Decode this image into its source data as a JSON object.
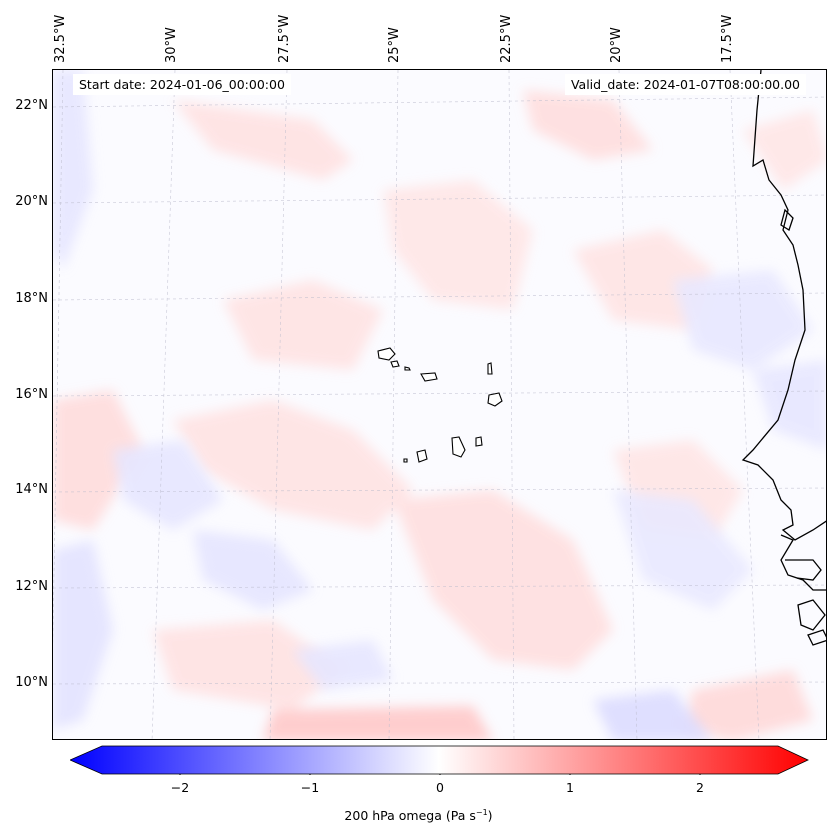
{
  "map": {
    "start_date": "Start date: 2024-01-06_00:00:00",
    "valid_date": "Valid_date: 2024-01-07T08:00:00.00",
    "lat_labels": [
      "22°N",
      "20°N",
      "18°N",
      "16°N",
      "14°N",
      "12°N",
      "10°N"
    ],
    "lon_labels": [
      "32.5°W",
      "30°W",
      "27.5°W",
      "25°W",
      "22.5°W",
      "20°W",
      "17.5°W"
    ],
    "field_colors": {
      "pos": "#ff0000",
      "neg": "#0000ff",
      "zero": "#ffffff"
    }
  },
  "colorbar": {
    "ticks": [
      "−2",
      "−1",
      "0",
      "1",
      "2"
    ],
    "tick_values": [
      -2,
      -1,
      0,
      1,
      2
    ],
    "range": [
      -2.6,
      2.6
    ],
    "label_main": "200 hPa omega (Pa s",
    "label_sup": "−1",
    "label_end": ")"
  }
}
